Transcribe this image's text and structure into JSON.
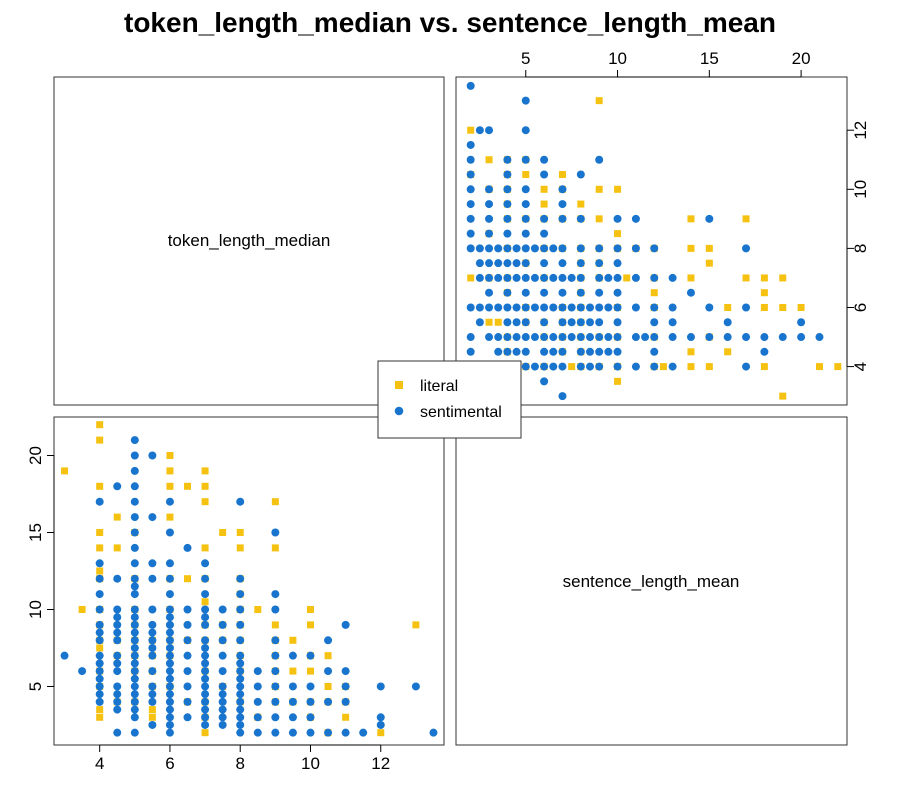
{
  "colors": {
    "literal": "#F5C211",
    "sentimental": "#1874CD"
  },
  "chart_data": {
    "type": "scatter",
    "title": "token_length_median vs. sentence_length_mean",
    "variables": [
      "token_length_median",
      "sentence_length_mean"
    ],
    "axes": {
      "token_length_median": {
        "range": [
          2.7,
          13.8
        ],
        "ticks": [
          4,
          6,
          8,
          10,
          12
        ],
        "tick_labels": [
          "4",
          "6",
          "8",
          "10",
          "12"
        ]
      },
      "sentence_length_mean": {
        "range": [
          1.2,
          22.5
        ],
        "ticks": [
          5,
          10,
          15,
          20
        ],
        "tick_labels": [
          "5",
          "10",
          "15",
          "20"
        ]
      }
    },
    "legend": {
      "position": "center",
      "entries": [
        {
          "label": "literal",
          "marker": "square"
        },
        {
          "label": "sentimental",
          "marker": "circle"
        }
      ]
    },
    "series": [
      {
        "name": "literal",
        "marker": "square",
        "points": [
          [
            3,
            19
          ],
          [
            3.5,
            10
          ],
          [
            4,
            22
          ],
          [
            4,
            21
          ],
          [
            4,
            18
          ],
          [
            4,
            15
          ],
          [
            4,
            14
          ],
          [
            4,
            12.5
          ],
          [
            4,
            12
          ],
          [
            4,
            10
          ],
          [
            4,
            9
          ],
          [
            4,
            8
          ],
          [
            4,
            7.5
          ],
          [
            4,
            6
          ],
          [
            4,
            5
          ],
          [
            4,
            3.5
          ],
          [
            4,
            3
          ],
          [
            4.5,
            16
          ],
          [
            4.5,
            14
          ],
          [
            4.5,
            8
          ],
          [
            4.5,
            7
          ],
          [
            4.5,
            4
          ],
          [
            5,
            15
          ],
          [
            5,
            12
          ],
          [
            5,
            10
          ],
          [
            5,
            9
          ],
          [
            5,
            8
          ],
          [
            5,
            7
          ],
          [
            5,
            6
          ],
          [
            5,
            4
          ],
          [
            5.5,
            8
          ],
          [
            5.5,
            7
          ],
          [
            5.5,
            6
          ],
          [
            5.5,
            5
          ],
          [
            5.5,
            3.5
          ],
          [
            5.5,
            3
          ],
          [
            6,
            20
          ],
          [
            6,
            19
          ],
          [
            6,
            18
          ],
          [
            6,
            16
          ],
          [
            6,
            12
          ],
          [
            6,
            10
          ],
          [
            6,
            8
          ],
          [
            6,
            7
          ],
          [
            6,
            5
          ],
          [
            6.5,
            18
          ],
          [
            6.5,
            12
          ],
          [
            6.5,
            8
          ],
          [
            6.5,
            4
          ],
          [
            7,
            19
          ],
          [
            7,
            18
          ],
          [
            7,
            17
          ],
          [
            7,
            14
          ],
          [
            7,
            12
          ],
          [
            7,
            10.5
          ],
          [
            7,
            9
          ],
          [
            7,
            8
          ],
          [
            7,
            6
          ],
          [
            7,
            4
          ],
          [
            7,
            3
          ],
          [
            7,
            2
          ],
          [
            7.5,
            15
          ],
          [
            7.5,
            9
          ],
          [
            7.5,
            8
          ],
          [
            7.5,
            5
          ],
          [
            8,
            15
          ],
          [
            8,
            14
          ],
          [
            8,
            12
          ],
          [
            8,
            11
          ],
          [
            8,
            10
          ],
          [
            8,
            9
          ],
          [
            8,
            8
          ],
          [
            8,
            7
          ],
          [
            8,
            6
          ],
          [
            8,
            4
          ],
          [
            8.5,
            10
          ],
          [
            8.5,
            3
          ],
          [
            9,
            17
          ],
          [
            9,
            14
          ],
          [
            9,
            9
          ],
          [
            9,
            8
          ],
          [
            9,
            7
          ],
          [
            9,
            6
          ],
          [
            9,
            5
          ],
          [
            9,
            4
          ],
          [
            9.5,
            8
          ],
          [
            9.5,
            6
          ],
          [
            9.5,
            4
          ],
          [
            10,
            10
          ],
          [
            10,
            9
          ],
          [
            10,
            7
          ],
          [
            10,
            6
          ],
          [
            10,
            4
          ],
          [
            10,
            3
          ],
          [
            10.5,
            7
          ],
          [
            10.5,
            5
          ],
          [
            10.5,
            4
          ],
          [
            10.5,
            2
          ],
          [
            11,
            5
          ],
          [
            11,
            4
          ],
          [
            11,
            3
          ],
          [
            12,
            2
          ],
          [
            13,
            9
          ]
        ]
      },
      {
        "name": "sentimental",
        "marker": "circle",
        "points": [
          [
            3,
            7
          ],
          [
            3.5,
            6
          ],
          [
            4,
            17
          ],
          [
            4,
            13
          ],
          [
            4,
            12
          ],
          [
            4,
            11
          ],
          [
            4,
            10
          ],
          [
            4,
            9
          ],
          [
            4,
            8.5
          ],
          [
            4,
            8
          ],
          [
            4,
            7
          ],
          [
            4,
            6.5
          ],
          [
            4,
            6
          ],
          [
            4,
            5.5
          ],
          [
            4,
            5
          ],
          [
            4,
            4.5
          ],
          [
            4,
            4
          ],
          [
            4.5,
            18
          ],
          [
            4.5,
            12
          ],
          [
            4.5,
            10
          ],
          [
            4.5,
            9.5
          ],
          [
            4.5,
            9
          ],
          [
            4.5,
            8.5
          ],
          [
            4.5,
            8
          ],
          [
            4.5,
            7
          ],
          [
            4.5,
            6.5
          ],
          [
            4.5,
            6
          ],
          [
            4.5,
            5
          ],
          [
            4.5,
            4.5
          ],
          [
            4.5,
            4
          ],
          [
            4.5,
            3.5
          ],
          [
            4.5,
            2
          ],
          [
            5,
            21
          ],
          [
            5,
            20
          ],
          [
            5,
            19
          ],
          [
            5,
            18
          ],
          [
            5,
            17
          ],
          [
            5,
            16
          ],
          [
            5,
            15
          ],
          [
            5,
            14
          ],
          [
            5,
            13
          ],
          [
            5,
            12
          ],
          [
            5,
            11.5
          ],
          [
            5,
            11
          ],
          [
            5,
            10
          ],
          [
            5,
            9.5
          ],
          [
            5,
            9
          ],
          [
            5,
            8.5
          ],
          [
            5,
            8
          ],
          [
            5,
            7.5
          ],
          [
            5,
            7
          ],
          [
            5,
            6.5
          ],
          [
            5,
            6
          ],
          [
            5,
            5.5
          ],
          [
            5,
            5
          ],
          [
            5,
            4.5
          ],
          [
            5,
            4
          ],
          [
            5,
            3.5
          ],
          [
            5,
            3
          ],
          [
            5,
            2
          ],
          [
            5.5,
            20
          ],
          [
            5.5,
            16
          ],
          [
            5.5,
            13
          ],
          [
            5.5,
            12
          ],
          [
            5.5,
            10
          ],
          [
            5.5,
            9
          ],
          [
            5.5,
            8.5
          ],
          [
            5.5,
            8
          ],
          [
            5.5,
            7.5
          ],
          [
            5.5,
            7
          ],
          [
            5.5,
            6
          ],
          [
            5.5,
            5
          ],
          [
            5.5,
            4.5
          ],
          [
            5.5,
            4
          ],
          [
            5.5,
            2.5
          ],
          [
            6,
            17
          ],
          [
            6,
            15
          ],
          [
            6,
            13
          ],
          [
            6,
            12
          ],
          [
            6,
            11
          ],
          [
            6,
            10
          ],
          [
            6,
            9.5
          ],
          [
            6,
            9
          ],
          [
            6,
            8.5
          ],
          [
            6,
            8
          ],
          [
            6,
            7.5
          ],
          [
            6,
            7
          ],
          [
            6,
            6.5
          ],
          [
            6,
            6
          ],
          [
            6,
            5.5
          ],
          [
            6,
            5
          ],
          [
            6,
            4.5
          ],
          [
            6,
            4
          ],
          [
            6,
            3.5
          ],
          [
            6,
            3
          ],
          [
            6,
            2.5
          ],
          [
            6,
            2
          ],
          [
            6.5,
            14
          ],
          [
            6.5,
            10
          ],
          [
            6.5,
            9
          ],
          [
            6.5,
            8
          ],
          [
            6.5,
            7
          ],
          [
            6.5,
            6
          ],
          [
            6.5,
            5
          ],
          [
            6.5,
            4
          ],
          [
            6.5,
            3
          ],
          [
            7,
            13
          ],
          [
            7,
            12
          ],
          [
            7,
            11
          ],
          [
            7,
            10
          ],
          [
            7,
            9.5
          ],
          [
            7,
            9
          ],
          [
            7,
            8
          ],
          [
            7,
            7.5
          ],
          [
            7,
            7
          ],
          [
            7,
            6.5
          ],
          [
            7,
            6
          ],
          [
            7,
            5.5
          ],
          [
            7,
            5
          ],
          [
            7,
            4.5
          ],
          [
            7,
            4
          ],
          [
            7,
            3.5
          ],
          [
            7,
            3
          ],
          [
            7,
            2.5
          ],
          [
            7.5,
            10
          ],
          [
            7.5,
            9
          ],
          [
            7.5,
            8
          ],
          [
            7.5,
            7
          ],
          [
            7.5,
            6
          ],
          [
            7.5,
            5
          ],
          [
            7.5,
            4.5
          ],
          [
            7.5,
            4
          ],
          [
            7.5,
            3.5
          ],
          [
            7.5,
            3
          ],
          [
            7.5,
            2.5
          ],
          [
            8,
            17
          ],
          [
            8,
            12
          ],
          [
            8,
            11
          ],
          [
            8,
            10
          ],
          [
            8,
            9
          ],
          [
            8,
            8
          ],
          [
            8,
            7
          ],
          [
            8,
            6.5
          ],
          [
            8,
            6
          ],
          [
            8,
            5.5
          ],
          [
            8,
            5
          ],
          [
            8,
            4.5
          ],
          [
            8,
            4
          ],
          [
            8,
            3.5
          ],
          [
            8,
            3
          ],
          [
            8,
            2.5
          ],
          [
            8,
            2
          ],
          [
            8.5,
            6
          ],
          [
            8.5,
            5
          ],
          [
            8.5,
            4
          ],
          [
            8.5,
            3
          ],
          [
            8.5,
            2
          ],
          [
            9,
            15
          ],
          [
            9,
            11
          ],
          [
            9,
            10
          ],
          [
            9,
            8
          ],
          [
            9,
            7
          ],
          [
            9,
            6
          ],
          [
            9,
            5
          ],
          [
            9,
            4
          ],
          [
            9,
            3
          ],
          [
            9,
            2
          ],
          [
            9.5,
            7
          ],
          [
            9.5,
            5
          ],
          [
            9.5,
            4
          ],
          [
            9.5,
            3
          ],
          [
            9.5,
            2
          ],
          [
            10,
            7
          ],
          [
            10,
            5
          ],
          [
            10,
            4
          ],
          [
            10,
            3
          ],
          [
            10,
            2
          ],
          [
            10.5,
            8
          ],
          [
            10.5,
            6
          ],
          [
            10.5,
            4
          ],
          [
            10.5,
            2
          ],
          [
            11,
            9
          ],
          [
            11,
            6
          ],
          [
            11,
            5
          ],
          [
            11,
            4
          ],
          [
            11,
            2
          ],
          [
            11.5,
            2
          ],
          [
            12,
            5
          ],
          [
            12,
            3
          ],
          [
            12,
            2.5
          ],
          [
            13,
            5
          ],
          [
            13.5,
            2
          ]
        ]
      }
    ]
  }
}
